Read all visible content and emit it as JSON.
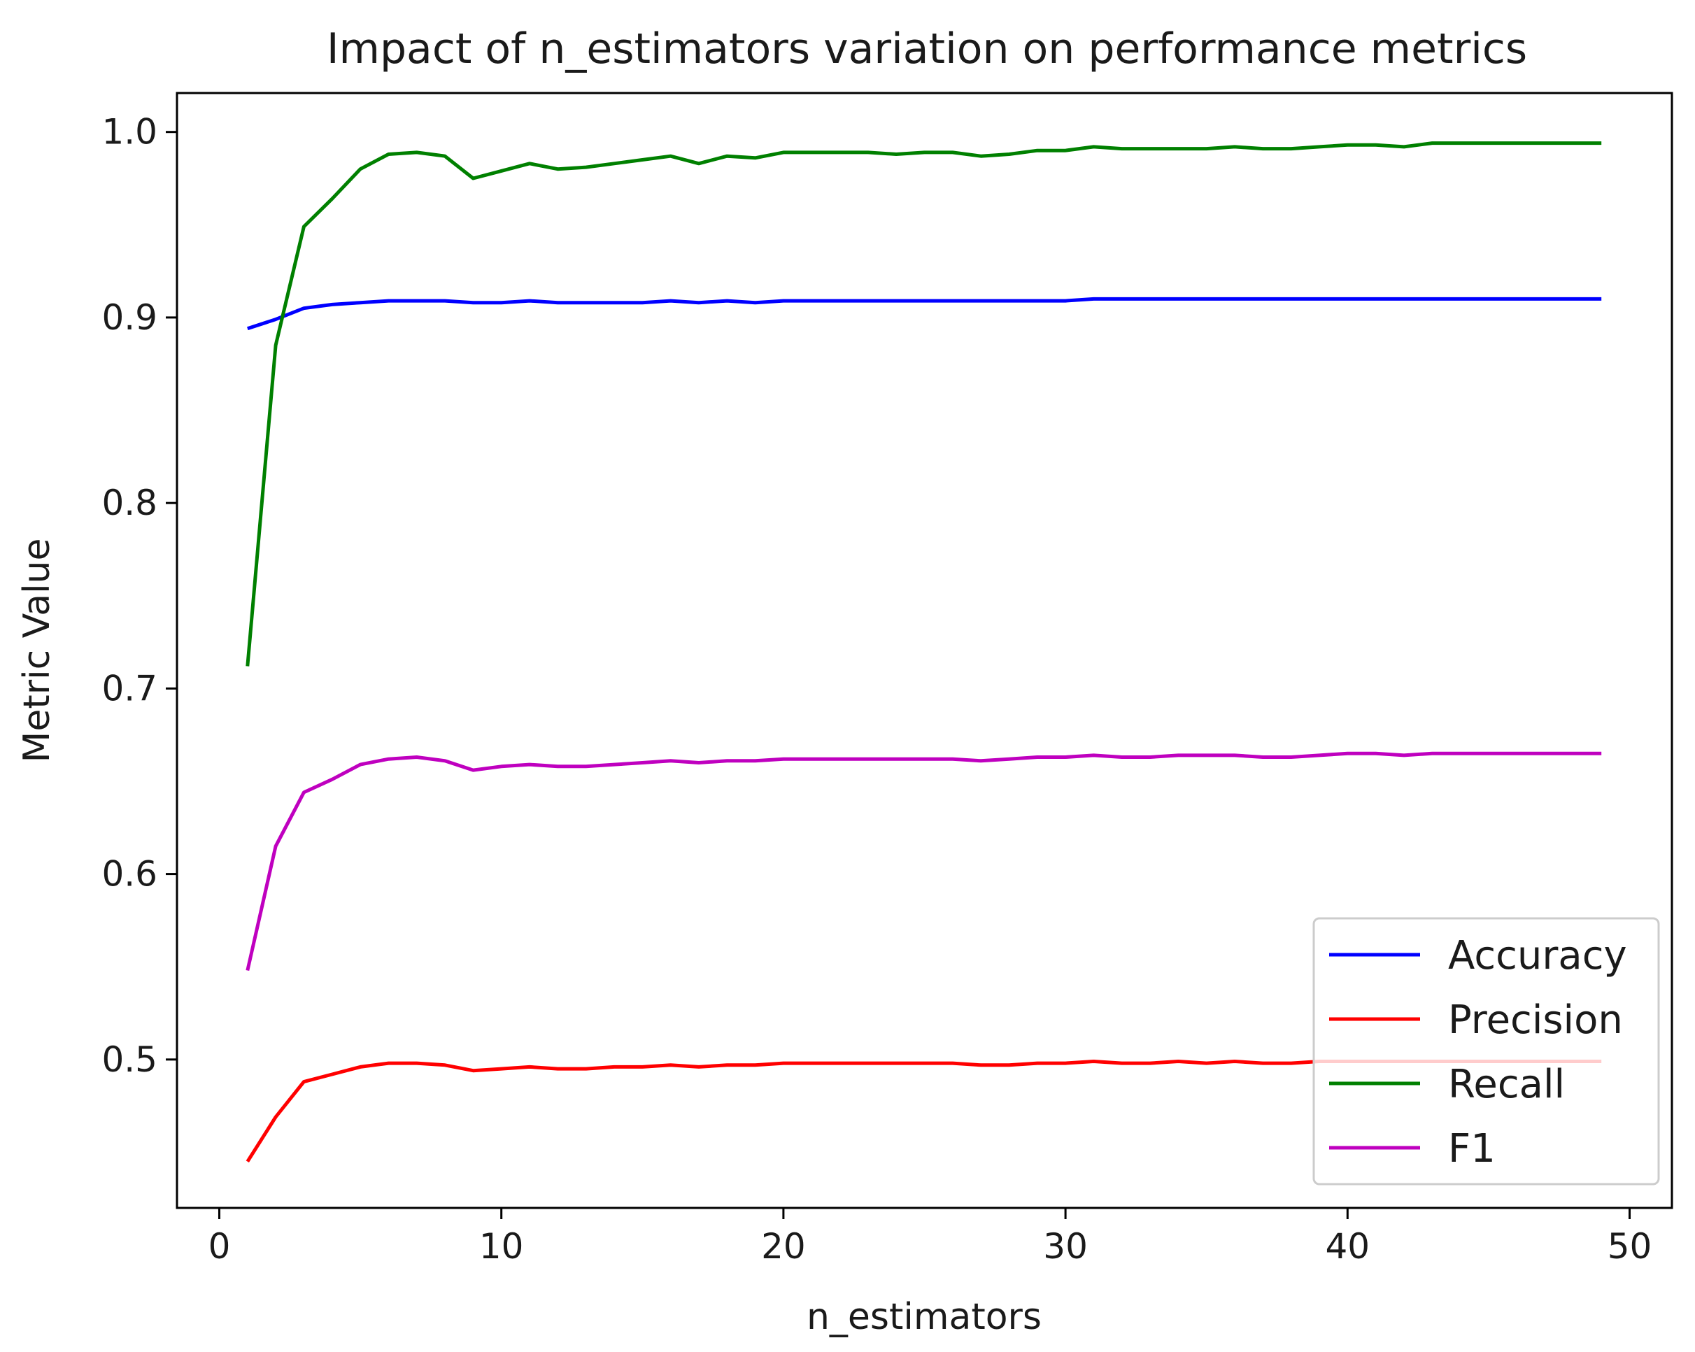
{
  "chart_data": {
    "type": "line",
    "title": "Impact of n_estimators variation on performance metrics",
    "xlabel": "n_estimators",
    "ylabel": "Metric Value",
    "xlim": [
      -1.5,
      51.5
    ],
    "ylim": [
      0.42,
      1.021
    ],
    "xticks": [
      0,
      10,
      20,
      30,
      40,
      50
    ],
    "xtick_labels": [
      "0",
      "10",
      "20",
      "30",
      "40",
      "50"
    ],
    "yticks": [
      0.5,
      0.6,
      0.7,
      0.8,
      0.9,
      1.0
    ],
    "ytick_labels": [
      "0.5",
      "0.6",
      "0.7",
      "0.8",
      "0.9",
      "1.0"
    ],
    "grid": false,
    "legend_position": "lower-right",
    "x": [
      1,
      2,
      3,
      4,
      5,
      6,
      7,
      8,
      9,
      10,
      11,
      12,
      13,
      14,
      15,
      16,
      17,
      18,
      19,
      20,
      21,
      22,
      23,
      24,
      25,
      26,
      27,
      28,
      29,
      30,
      31,
      32,
      33,
      34,
      35,
      36,
      37,
      38,
      39,
      40,
      41,
      42,
      43,
      44,
      45,
      46,
      47,
      48,
      49
    ],
    "series": [
      {
        "name": "Accuracy",
        "color": "#0000ff",
        "values": [
          0.894,
          0.899,
          0.905,
          0.907,
          0.908,
          0.909,
          0.909,
          0.909,
          0.908,
          0.908,
          0.909,
          0.908,
          0.908,
          0.908,
          0.908,
          0.909,
          0.908,
          0.909,
          0.908,
          0.909,
          0.909,
          0.909,
          0.909,
          0.909,
          0.909,
          0.909,
          0.909,
          0.909,
          0.909,
          0.909,
          0.91,
          0.91,
          0.91,
          0.91,
          0.91,
          0.91,
          0.91,
          0.91,
          0.91,
          0.91,
          0.91,
          0.91,
          0.91,
          0.91,
          0.91,
          0.91,
          0.91,
          0.91,
          0.91
        ]
      },
      {
        "name": "Precision",
        "color": "#ff0000",
        "values": [
          0.445,
          0.469,
          0.488,
          0.492,
          0.496,
          0.498,
          0.498,
          0.497,
          0.494,
          0.495,
          0.496,
          0.495,
          0.495,
          0.496,
          0.496,
          0.497,
          0.496,
          0.497,
          0.497,
          0.498,
          0.498,
          0.498,
          0.498,
          0.498,
          0.498,
          0.498,
          0.497,
          0.497,
          0.498,
          0.498,
          0.499,
          0.498,
          0.498,
          0.499,
          0.498,
          0.499,
          0.498,
          0.498,
          0.499,
          0.499,
          0.499,
          0.499,
          0.499,
          0.499,
          0.499,
          0.499,
          0.499,
          0.499,
          0.499
        ]
      },
      {
        "name": "Recall",
        "color": "#008000",
        "values": [
          0.712,
          0.885,
          0.949,
          0.964,
          0.98,
          0.988,
          0.989,
          0.987,
          0.975,
          0.979,
          0.983,
          0.98,
          0.981,
          0.983,
          0.985,
          0.987,
          0.983,
          0.987,
          0.986,
          0.989,
          0.989,
          0.989,
          0.989,
          0.988,
          0.989,
          0.989,
          0.987,
          0.988,
          0.99,
          0.99,
          0.992,
          0.991,
          0.991,
          0.991,
          0.991,
          0.992,
          0.991,
          0.991,
          0.992,
          0.993,
          0.993,
          0.992,
          0.994,
          0.994,
          0.994,
          0.994,
          0.994,
          0.994,
          0.994
        ]
      },
      {
        "name": "F1",
        "color": "#bf00bf",
        "values": [
          0.548,
          0.615,
          0.644,
          0.651,
          0.659,
          0.662,
          0.663,
          0.661,
          0.656,
          0.658,
          0.659,
          0.658,
          0.658,
          0.659,
          0.66,
          0.661,
          0.66,
          0.661,
          0.661,
          0.662,
          0.662,
          0.662,
          0.662,
          0.662,
          0.662,
          0.662,
          0.661,
          0.662,
          0.663,
          0.663,
          0.664,
          0.663,
          0.663,
          0.664,
          0.664,
          0.664,
          0.663,
          0.663,
          0.664,
          0.665,
          0.665,
          0.664,
          0.665,
          0.665,
          0.665,
          0.665,
          0.665,
          0.665,
          0.665
        ]
      }
    ]
  }
}
